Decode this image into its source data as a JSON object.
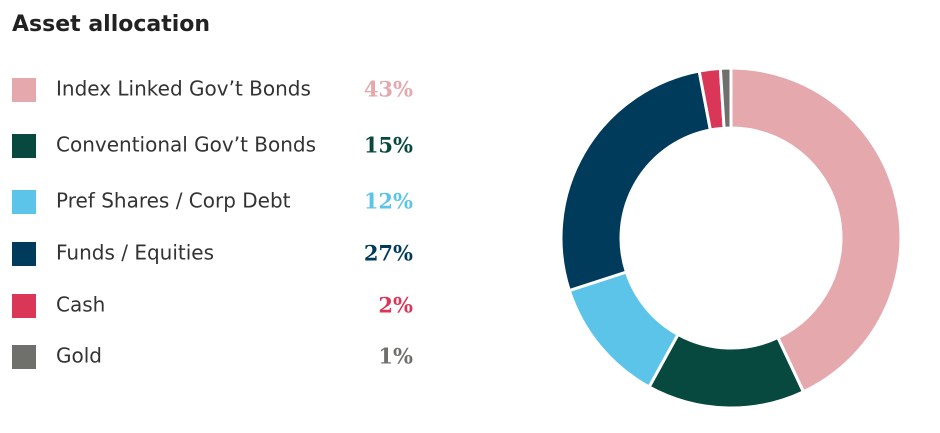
{
  "chart_data": {
    "type": "donut",
    "title": "Asset allocation",
    "categories": [
      "Index Linked Gov’t Bonds",
      "Conventional Gov’t Bonds",
      "Pref Shares / Corp Debt",
      "Funds / Equities",
      "Cash",
      "Gold"
    ],
    "values": [
      43,
      15,
      12,
      27,
      2,
      1
    ],
    "value_labels": [
      "43%",
      "15%",
      "12%",
      "27%",
      "2%",
      "1%"
    ],
    "colors": [
      "#e4a8ad",
      "#07493f",
      "#5cc4e8",
      "#003b5c",
      "#da3658",
      "#6f6f6b"
    ]
  }
}
